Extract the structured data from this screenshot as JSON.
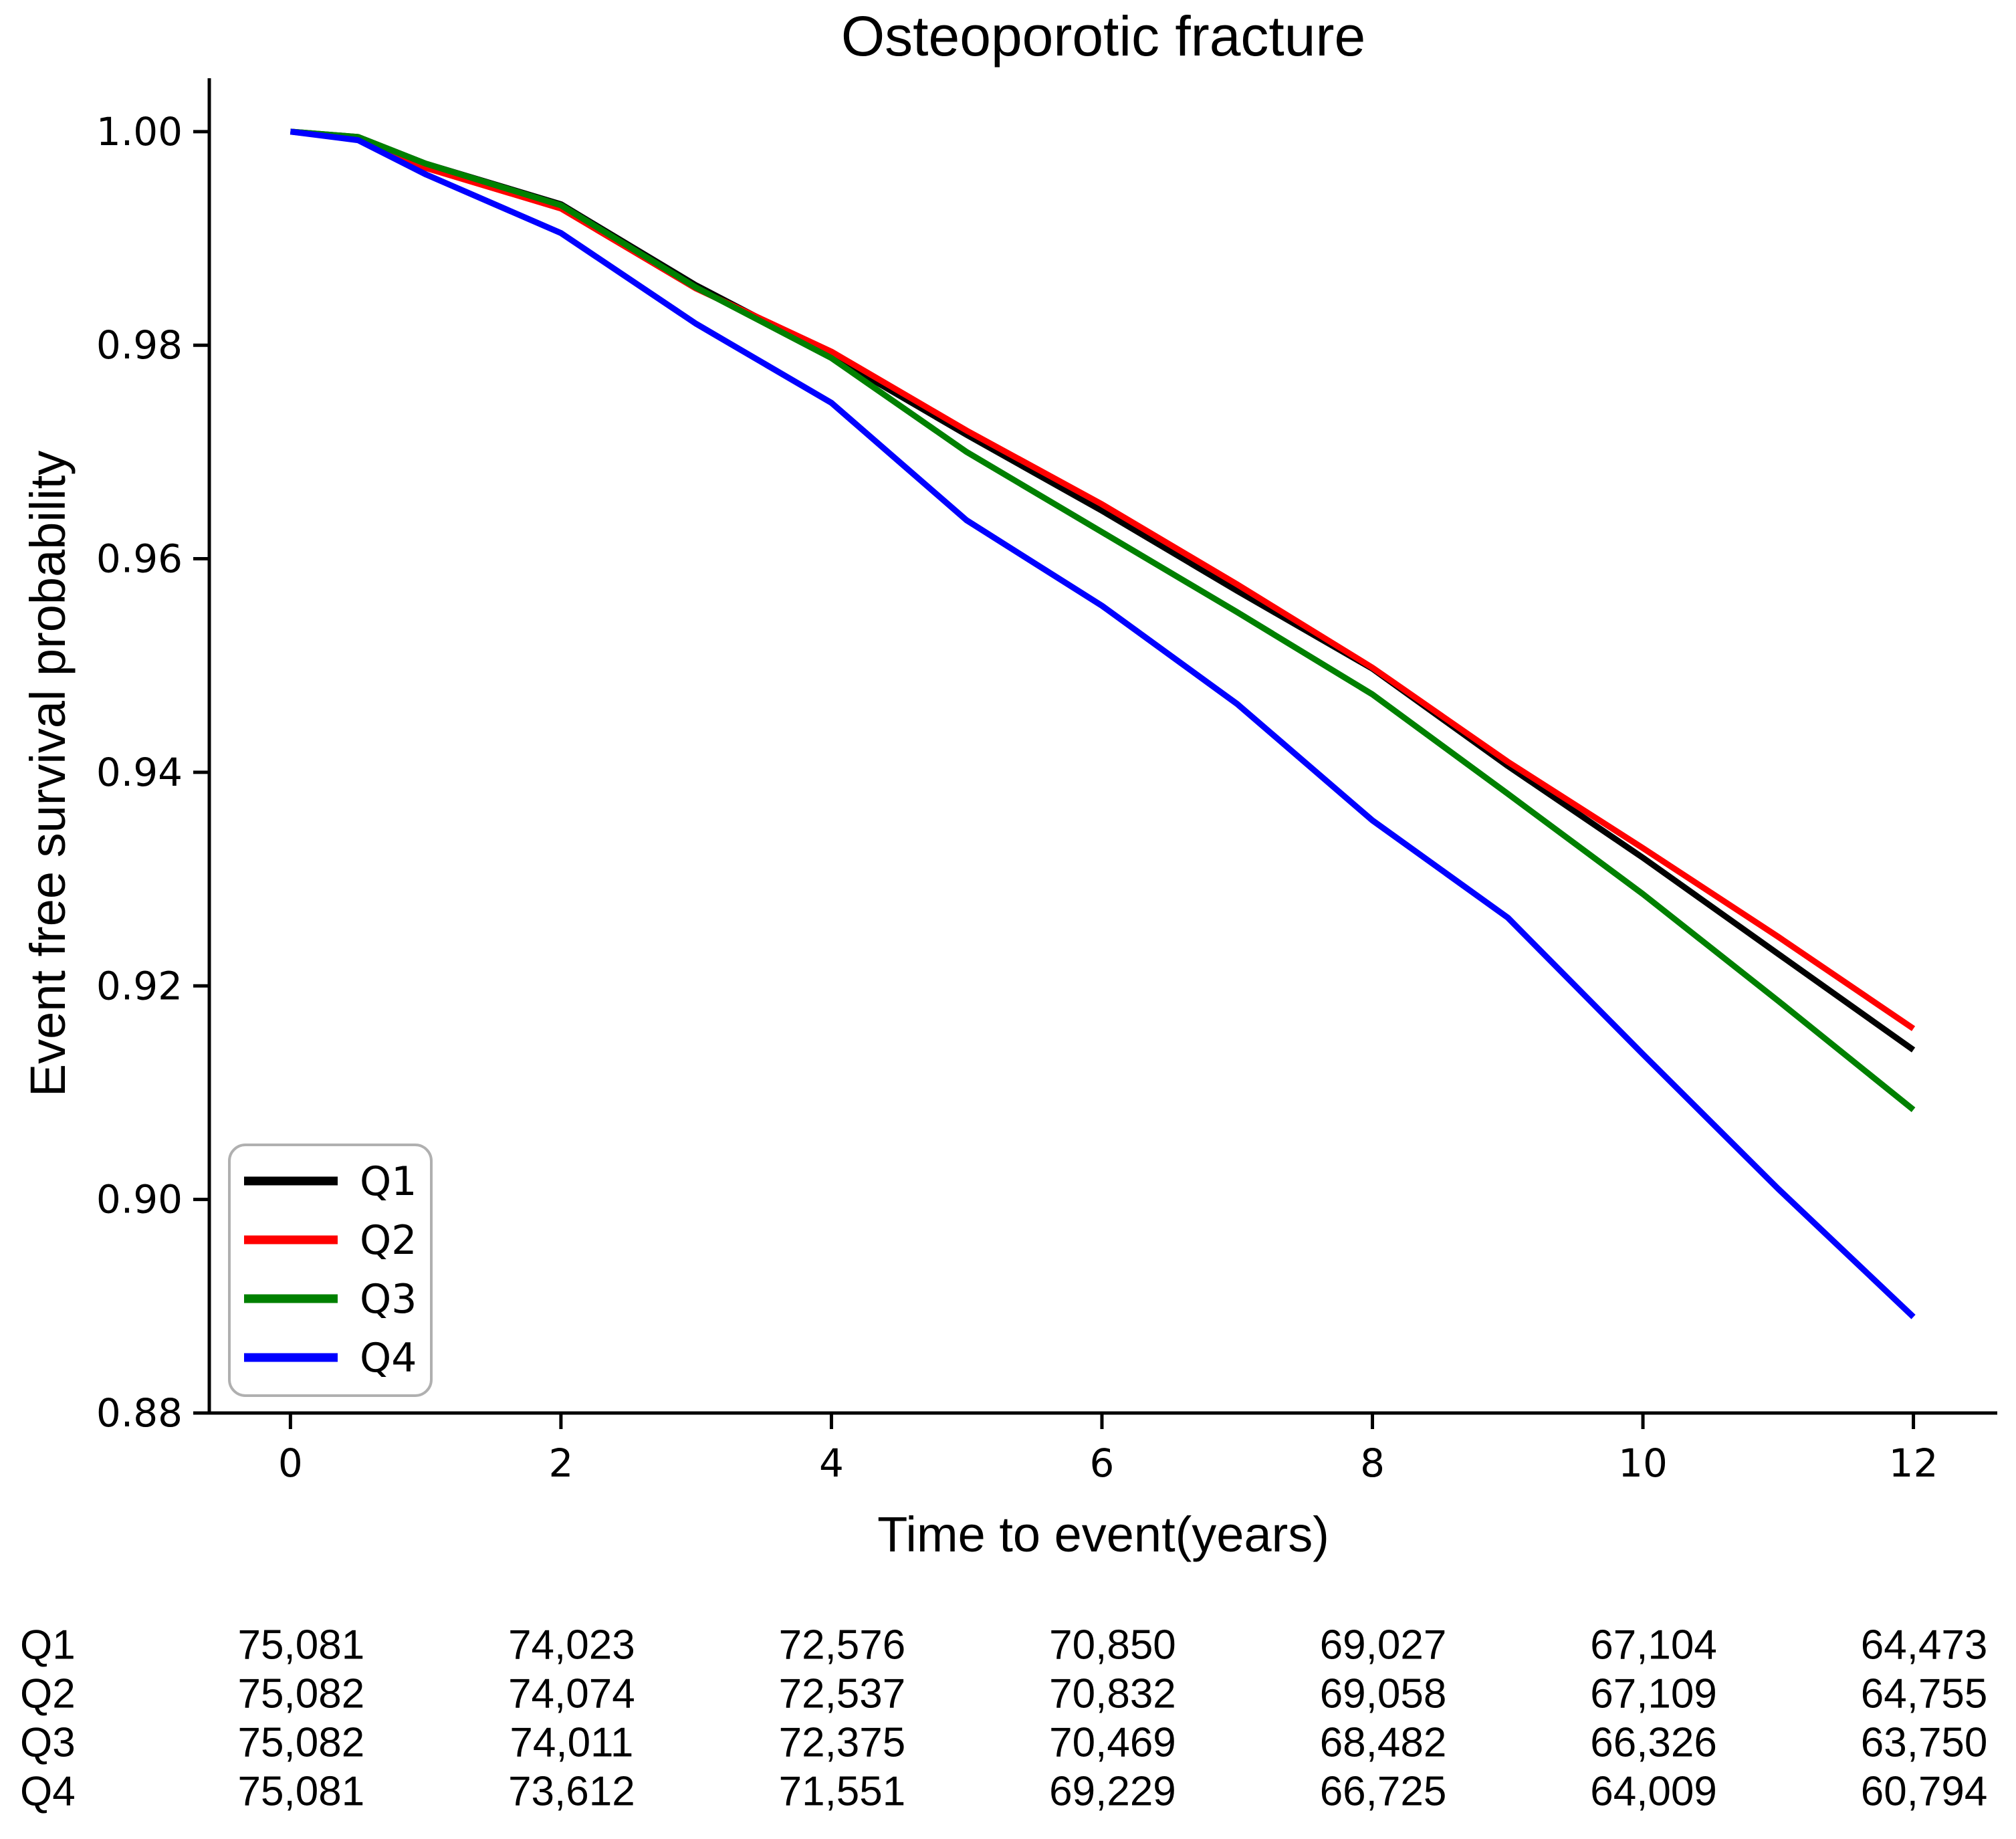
{
  "title": "Osteoporotic fracture",
  "chart_data": {
    "type": "line",
    "title": "Osteoporotic fracture",
    "xlabel": "Time to event(years)",
    "ylabel": "Event free survival probability",
    "xlim": [
      -0.6,
      12.62
    ],
    "ylim": [
      0.88,
      1.005
    ],
    "grid": false,
    "legend_position": "lower-left",
    "xticks": [
      0,
      2,
      4,
      6,
      8,
      10,
      12
    ],
    "xtick_labels": [
      "0",
      "2",
      "4",
      "6",
      "8",
      "10",
      "12"
    ],
    "yticks": [
      0.88,
      0.9,
      0.92,
      0.94,
      0.96,
      0.98,
      1.0
    ],
    "ytick_labels": [
      "0.88",
      "0.90",
      "0.92",
      "0.94",
      "0.96",
      "0.98",
      "1.00"
    ],
    "x": [
      0,
      0.5,
      1,
      2,
      3,
      4,
      5,
      6,
      7,
      8,
      9,
      10,
      11,
      12
    ],
    "series": [
      {
        "name": "Q1",
        "color": "#000000",
        "values": [
          1.0,
          0.9995,
          0.997,
          0.9932,
          0.9856,
          0.979,
          0.9716,
          0.9645,
          0.957,
          0.9497,
          0.9406,
          0.932,
          0.923,
          0.914
        ]
      },
      {
        "name": "Q2",
        "color": "#ff0000",
        "values": [
          1.0,
          0.9993,
          0.9966,
          0.9928,
          0.9853,
          0.9794,
          0.972,
          0.9651,
          0.9576,
          0.9498,
          0.941,
          0.9329,
          0.9246,
          0.916
        ]
      },
      {
        "name": "Q3",
        "color": "#008000",
        "values": [
          1.0,
          0.9995,
          0.997,
          0.9931,
          0.9854,
          0.9788,
          0.97,
          0.9625,
          0.955,
          0.9473,
          0.938,
          0.9286,
          0.9186,
          0.9084
        ]
      },
      {
        "name": "Q4",
        "color": "#0000ff",
        "values": [
          1.0,
          0.9992,
          0.996,
          0.9905,
          0.982,
          0.9746,
          0.9636,
          0.9556,
          0.9464,
          0.9355,
          0.9264,
          0.9136,
          0.901,
          0.889
        ]
      }
    ]
  },
  "risk_table": {
    "time_points": [
      0,
      2,
      4,
      6,
      8,
      10,
      12
    ],
    "rows": [
      {
        "label": "Q1",
        "counts": [
          "75,081",
          "74,023",
          "72,576",
          "70,850",
          "69,027",
          "67,104",
          "64,473"
        ]
      },
      {
        "label": "Q2",
        "counts": [
          "75,082",
          "74,074",
          "72,537",
          "70,832",
          "69,058",
          "67,109",
          "64,755"
        ]
      },
      {
        "label": "Q3",
        "counts": [
          "75,082",
          "74,011",
          "72,375",
          "70,469",
          "68,482",
          "66,326",
          "63,750"
        ]
      },
      {
        "label": "Q4",
        "counts": [
          "75,081",
          "73,612",
          "71,551",
          "69,229",
          "66,725",
          "64,009",
          "60,794"
        ]
      }
    ]
  }
}
